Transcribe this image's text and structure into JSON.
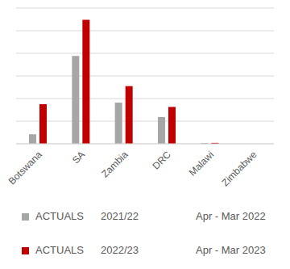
{
  "chart_data": {
    "type": "bar",
    "categories": [
      "Botswana",
      "SA",
      "Zambia",
      "DRC",
      "Malawi",
      "Zimbabwe"
    ],
    "series": [
      {
        "name": "ACTUALS",
        "year": "2021/22",
        "period": "Apr - Mar 2022",
        "color": "#a6a6a6",
        "values": [
          0.42,
          3.88,
          1.82,
          1.18,
          0.04,
          null
        ]
      },
      {
        "name": "ACTUALS",
        "year": "2022/23",
        "period": "Apr - Mar 2023",
        "color": "#c00000",
        "values": [
          1.75,
          5.48,
          2.55,
          1.63,
          0.04,
          null
        ]
      }
    ],
    "ylim": [
      0,
      6
    ],
    "yticks": [
      0,
      1,
      2,
      3,
      4,
      5,
      6
    ],
    "grid": true,
    "tick_labels": "x",
    "legend": "bottom"
  }
}
